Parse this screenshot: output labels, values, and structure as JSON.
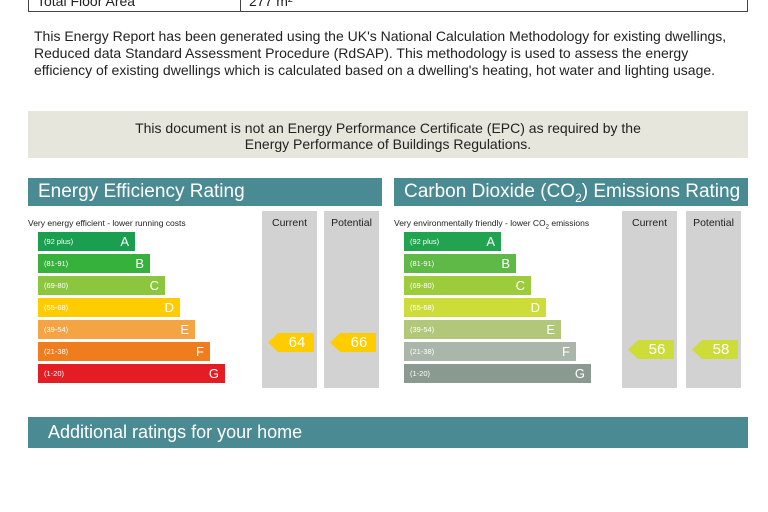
{
  "top_table": {
    "label": "Total Floor Area",
    "value": "277 m²"
  },
  "intro": "This Energy Report has been generated using the UK's National Calculation Methodology for existing dwellings, Reduced data Standard Assessment Procedure (RdSAP). This methodology is used to assess the energy efficiency of existing dwellings which is calculated based on a dwelling's heating, hot water and lighting usage.",
  "notice": {
    "line1": "This document is not an Energy Performance Certificate (EPC) as required by the",
    "line2": "Energy Performance of Buildings Regulations."
  },
  "energy": {
    "title": "Energy Efficiency Rating",
    "top_caption": "Very energy efficient - lower running costs",
    "col_current": "Current",
    "col_potential": "Potential",
    "current": "64",
    "potential": "66",
    "bands": [
      {
        "range": "(92 plus)",
        "letter": "A",
        "color": "#1a9e50"
      },
      {
        "range": "(81-91)",
        "letter": "B",
        "color": "#36b13b"
      },
      {
        "range": "(69-80)",
        "letter": "C",
        "color": "#8cc63f"
      },
      {
        "range": "(55-68)",
        "letter": "D",
        "color": "#ffcc00"
      },
      {
        "range": "(39-54)",
        "letter": "E",
        "color": "#f4a442"
      },
      {
        "range": "(21-38)",
        "letter": "F",
        "color": "#ef7d1d"
      },
      {
        "range": "(1-20)",
        "letter": "G",
        "color": "#e31d23"
      }
    ],
    "arrow_color": "#ffcc00"
  },
  "carbon": {
    "title_pre": "Carbon Dioxide (CO",
    "title_sub": "2",
    "title_post": ") Emissions Rating",
    "top_caption_pre": "Very environmentally friendly - lower CO",
    "top_caption_sub": "2",
    "top_caption_post": " emissions",
    "col_current": "Current",
    "col_potential": "Potential",
    "current": "56",
    "potential": "58",
    "bands": [
      {
        "range": "(92 plus)",
        "letter": "A",
        "color": "#22a350"
      },
      {
        "range": "(81-91)",
        "letter": "B",
        "color": "#5fb946"
      },
      {
        "range": "(69-80)",
        "letter": "C",
        "color": "#9ccb3b"
      },
      {
        "range": "(55-68)",
        "letter": "D",
        "color": "#cddc39"
      },
      {
        "range": "(39-54)",
        "letter": "E",
        "color": "#b2c77a"
      },
      {
        "range": "(21-38)",
        "letter": "F",
        "color": "#a9b6a9"
      },
      {
        "range": "(1-20)",
        "letter": "G",
        "color": "#8a9a90"
      }
    ],
    "arrow_color": "#cddc39"
  },
  "additional": {
    "title": "Additional ratings for your home"
  }
}
